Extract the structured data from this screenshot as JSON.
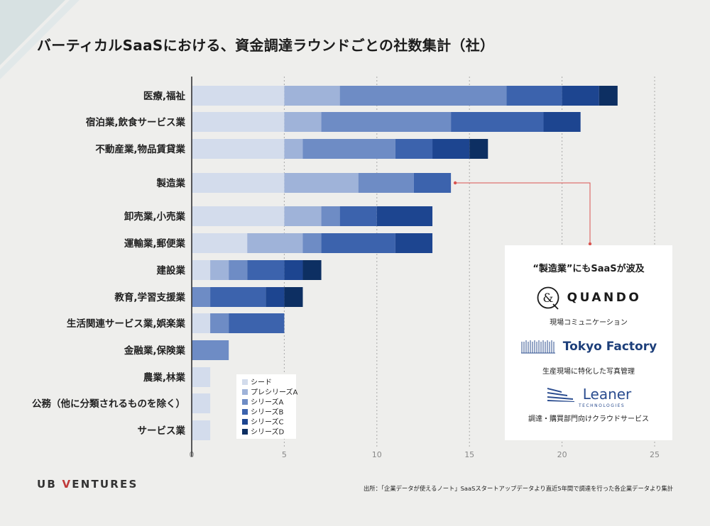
{
  "title": "バーティカルSaaSにおける、資金調達ラウンドごとの社数集計（社）",
  "chart_data": {
    "type": "bar",
    "orientation": "horizontal",
    "stacked": true,
    "title": "バーティカルSaaSにおける、資金調達ラウンドごとの社数集計（社）",
    "categories": [
      "医療,福祉",
      "宿泊業,飲食サービス業",
      "不動産業,物品賃貸業",
      "製造業",
      "卸売業,小売業",
      "運輸業,郵便業",
      "建設業",
      "教育,学習支援業",
      "生活関連サービス業,娯楽業",
      "金融業,保険業",
      "農業,林業",
      "公務（他に分類されるものを除く）",
      "サービス業"
    ],
    "series": [
      {
        "name": "シード",
        "color": "#d3dcec",
        "values": [
          5,
          5,
          5,
          5,
          5,
          3,
          1,
          0,
          1,
          0,
          1,
          1,
          1
        ]
      },
      {
        "name": "プレシリーズA",
        "color": "#9fb3d9",
        "values": [
          3,
          2,
          1,
          4,
          2,
          3,
          1,
          0,
          0,
          0,
          0,
          0,
          0
        ]
      },
      {
        "name": "シリーズA",
        "color": "#6e8cc5",
        "values": [
          9,
          7,
          5,
          3,
          1,
          1,
          1,
          1,
          1,
          2,
          0,
          0,
          0
        ]
      },
      {
        "name": "シリーズB",
        "color": "#3c63ad",
        "values": [
          3,
          5,
          2,
          2,
          2,
          4,
          2,
          3,
          3,
          0,
          0,
          0,
          0
        ]
      },
      {
        "name": "シリーズC",
        "color": "#1d4590",
        "values": [
          2,
          2,
          2,
          0,
          3,
          2,
          1,
          1,
          0,
          0,
          0,
          0,
          0
        ]
      },
      {
        "name": "シリーズD",
        "color": "#0d2f62",
        "values": [
          1,
          0,
          1,
          0,
          0,
          0,
          1,
          1,
          0,
          0,
          0,
          0,
          0
        ]
      }
    ],
    "xlim": [
      0,
      25
    ],
    "xticks": [
      0,
      5,
      10,
      15,
      20,
      25
    ],
    "grid": "vertical dashed",
    "legend_placement": "bottom-center",
    "highlight_category": "製造業"
  },
  "callout": {
    "heading": "“製造業”にもSaaSが波及",
    "companies": [
      {
        "name": "QUANDO",
        "description": "現場コミュニケーション"
      },
      {
        "name": "Tokyo Factory",
        "description": "生産現場に特化した写真管理"
      },
      {
        "name": "Leaner",
        "sub": "TECHNOLOGIES",
        "description": "調達・購買部門向けクラウドサービス"
      }
    ],
    "connector_color": "#d9534f"
  },
  "footer": {
    "brand_prefix": "UB ",
    "brand_v": "V",
    "brand_suffix": "ENTURES",
    "source": "出所：「企業データが使えるノート」SaaSスタートアップデータより直近5年間で調達を行った各企業データより集計"
  }
}
